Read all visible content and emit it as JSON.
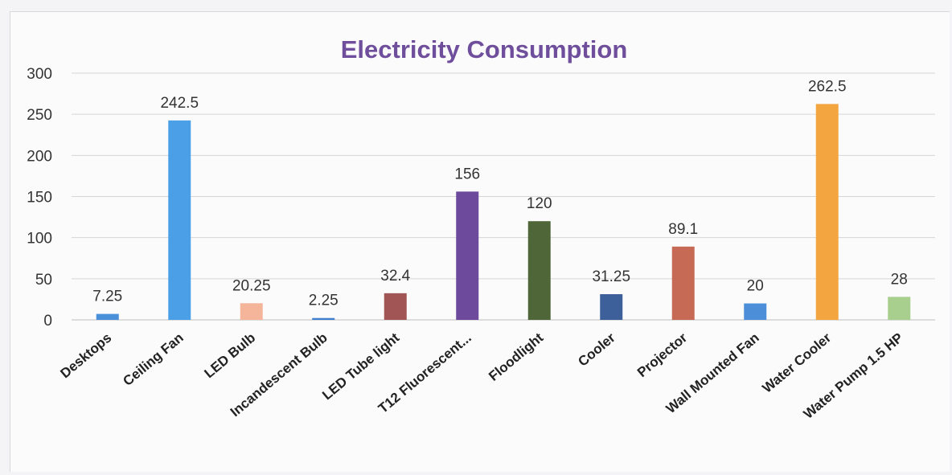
{
  "chart_data": {
    "type": "bar",
    "title": "Electricity Consumption",
    "xlabel": "",
    "ylabel": "",
    "ylim": [
      0,
      300
    ],
    "yticks": [
      0,
      50,
      100,
      150,
      200,
      250,
      300
    ],
    "grid": true,
    "legend": "none",
    "categories": [
      "Desktops",
      "Ceiling Fan",
      "LED Bulb",
      "Incandescent Bulb",
      "LED Tube light",
      "T12 Fluorescent...",
      "Floodlight",
      "Cooler",
      "Projector",
      "Wall Mounted Fan",
      "Water Cooler",
      "Water Pump 1.5 HP"
    ],
    "values": [
      7.25,
      242.5,
      20.25,
      2.25,
      32.4,
      156,
      120,
      31.25,
      89.1,
      20,
      262.5,
      28
    ],
    "value_labels": [
      "7.25",
      "242.5",
      "20.25",
      "2.25",
      "32.4",
      "156",
      "120",
      "31.25",
      "89.1",
      "20",
      "262.5",
      "28"
    ],
    "colors": [
      "#4a8fd9",
      "#4a9fe6",
      "#f4b59a",
      "#3f7fd0",
      "#a25555",
      "#6e4a9c",
      "#4f6638",
      "#3d5f9a",
      "#c66a56",
      "#4c8fd8",
      "#f3a640",
      "#a8cf8d"
    ]
  }
}
